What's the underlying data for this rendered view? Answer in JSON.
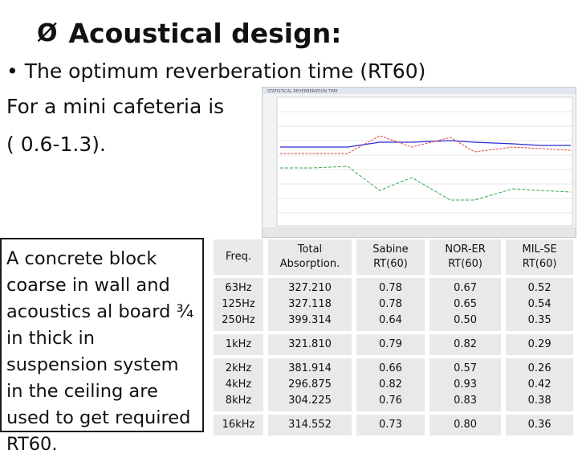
{
  "title": {
    "marker": "Ø",
    "text": "Acoustical design:"
  },
  "intro": {
    "bullet": "•",
    "line1": "The optimum reverberation time (RT60)",
    "line2": "For a mini cafeteria is",
    "line3": "( 0.6-1.3)."
  },
  "description": "A concrete block coarse in wall and acoustics al board ¾ in thick in suspension system in the ceiling are used to get required RT60.",
  "chart_screenshot": {
    "header_text": "STATISTICAL REVERBERATION TIME",
    "colors": {
      "blue": "#2b2bd6",
      "red": "#e04545",
      "green": "#39a84b",
      "grid": "#cfcfcf"
    }
  },
  "table": {
    "headers": {
      "freq": "Freq.",
      "absorption": "Total Absorption.",
      "sabine": "Sabine RT(60)",
      "norer": "NOR-ER RT(60)",
      "milse": "MIL-SE RT(60)"
    },
    "rows": [
      {
        "freq": "63Hz",
        "absorption": "327.210",
        "sabine": "0.78",
        "norer": "0.67",
        "milse": "0.52"
      },
      {
        "freq": "125Hz",
        "absorption": "327.118",
        "sabine": "0.78",
        "norer": "0.65",
        "milse": "0.54"
      },
      {
        "freq": "250Hz",
        "absorption": "399.314",
        "sabine": "0.64",
        "norer": "0.50",
        "milse": "0.35"
      },
      {
        "freq": "1kHz",
        "absorption": "321.810",
        "sabine": "0.79",
        "norer": "0.82",
        "milse": "0.29"
      },
      {
        "freq": "2kHz",
        "absorption": "381.914",
        "sabine": "0.66",
        "norer": "0.57",
        "milse": "0.26"
      },
      {
        "freq": "4kHz",
        "absorption": "296.875",
        "sabine": "0.82",
        "norer": "0.93",
        "milse": "0.42"
      },
      {
        "freq": "8kHz",
        "absorption": "304.225",
        "sabine": "0.76",
        "norer": "0.83",
        "milse": "0.38"
      },
      {
        "freq": "16kHz",
        "absorption": "314.552",
        "sabine": "0.73",
        "norer": "0.80",
        "milse": "0.36"
      }
    ]
  }
}
